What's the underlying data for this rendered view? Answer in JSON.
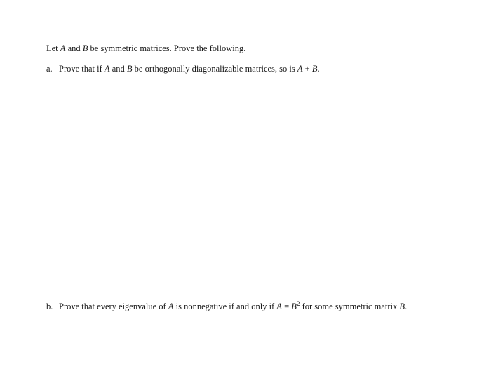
{
  "intro": {
    "pre": "Let ",
    "A": "A",
    "mid1": " and ",
    "B": "B",
    "post": " be symmetric matrices. Prove the following."
  },
  "item_a": {
    "marker": "a.",
    "t1": "Prove that if ",
    "A": "A",
    "t2": " and ",
    "B": "B",
    "t3": " be orthogonally diagonalizable matrices, so is ",
    "Aplus": "A",
    "plus": " + ",
    "Bplus": "B",
    "t4": "."
  },
  "item_b": {
    "marker": "b.",
    "t1": "Prove that every eigenvalue of ",
    "A": "A",
    "t2": " is nonnegative if and only if ",
    "Aeq": "A",
    "eq": " = ",
    "Bsq": "B",
    "sup2": "2",
    "t3": " for some symmetric matrix ",
    "Bend": "B",
    "t4": "."
  }
}
